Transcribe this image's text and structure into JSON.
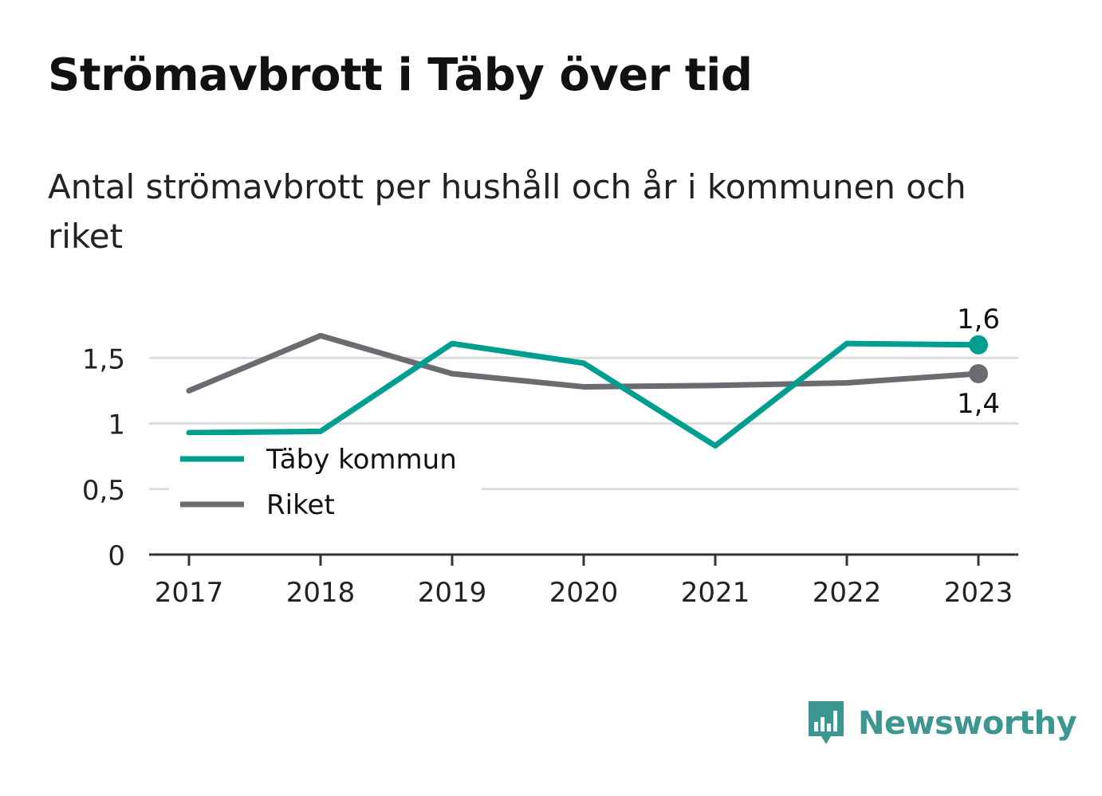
{
  "title": "Strömavbrott i Täby över tid",
  "subtitle": "Antal strömavbrott per hushåll och år i kommunen och riket",
  "brand": {
    "name": "Newsworthy",
    "color": "#3e9690"
  },
  "chart_data": {
    "type": "line",
    "x": [
      "2017",
      "2018",
      "2019",
      "2020",
      "2021",
      "2022",
      "2023"
    ],
    "ylim": [
      0,
      1.8
    ],
    "yticks": [
      0,
      0.5,
      1,
      1.5
    ],
    "ytick_labels": [
      "0",
      "0,5",
      "1",
      "1,5"
    ],
    "grid": true,
    "legend_position": "bottom-left",
    "series": [
      {
        "name": "Täby kommun",
        "color": "#009e8f",
        "values": [
          0.93,
          0.94,
          1.61,
          1.46,
          0.83,
          1.61,
          1.6
        ],
        "end_label": "1,6"
      },
      {
        "name": "Riket",
        "color": "#6d6b72",
        "values": [
          1.25,
          1.67,
          1.38,
          1.28,
          1.29,
          1.31,
          1.38
        ],
        "end_label": "1,4"
      }
    ]
  }
}
